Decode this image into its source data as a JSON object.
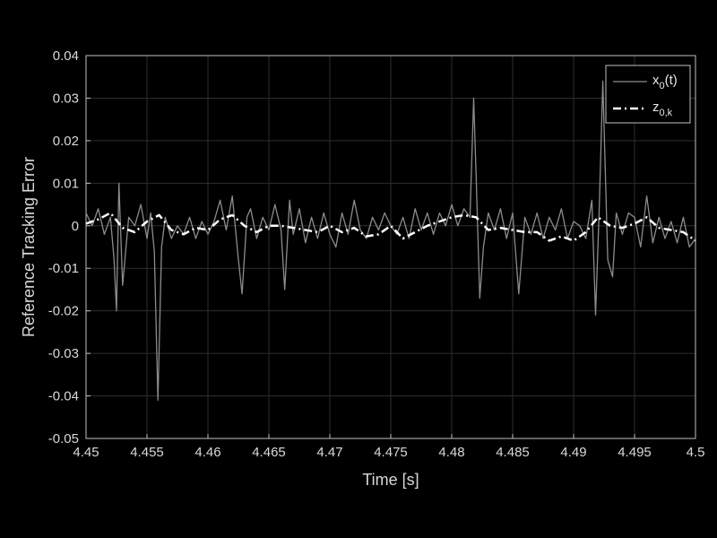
{
  "chart_data": {
    "type": "line",
    "title": "",
    "xlabel": "Time [s]",
    "ylabel": "Reference Tracking Error",
    "xlim": [
      4.45,
      4.5
    ],
    "ylim": [
      -0.05,
      0.04
    ],
    "grid": true,
    "legend_position": "top-right",
    "xticks": [
      4.45,
      4.455,
      4.46,
      4.465,
      4.47,
      4.475,
      4.48,
      4.485,
      4.49,
      4.495,
      4.5
    ],
    "xtick_labels": [
      "4.45",
      "4.455",
      "4.46",
      "4.465",
      "4.47",
      "4.475",
      "4.48",
      "4.485",
      "4.49",
      "4.495",
      "4.5"
    ],
    "yticks": [
      0.04,
      0.03,
      0.02,
      0.01,
      0,
      -0.01,
      -0.02,
      -0.03,
      -0.04,
      -0.05
    ],
    "ytick_labels": [
      "0.04",
      "0.03",
      "0.02",
      "0.01",
      "0",
      "-0.01",
      "-0.02",
      "-0.03",
      "-0.04",
      "-0.05"
    ],
    "series": [
      {
        "name": "x0(t)",
        "legend_main": "x",
        "legend_sub": "0",
        "legend_tail": "(t)",
        "style": "solid",
        "color": "#8c8c8c",
        "x": [
          4.45,
          4.4505,
          4.451,
          4.4515,
          4.452,
          4.4523,
          4.4525,
          4.4527,
          4.453,
          4.4535,
          4.454,
          4.4545,
          4.455,
          4.4553,
          4.4556,
          4.4559,
          4.4562,
          4.4565,
          4.457,
          4.4575,
          4.458,
          4.4585,
          4.459,
          4.4595,
          4.46,
          4.4605,
          4.461,
          4.4615,
          4.462,
          4.4625,
          4.4628,
          4.4632,
          4.4635,
          4.464,
          4.4645,
          4.465,
          4.4655,
          4.466,
          4.4663,
          4.4667,
          4.467,
          4.4675,
          4.468,
          4.4685,
          4.469,
          4.4695,
          4.47,
          4.4705,
          4.471,
          4.4715,
          4.472,
          4.4725,
          4.473,
          4.4735,
          4.474,
          4.4745,
          4.475,
          4.4755,
          4.476,
          4.4765,
          4.477,
          4.4775,
          4.478,
          4.4785,
          4.479,
          4.4795,
          4.48,
          4.4805,
          4.481,
          4.4815,
          4.4818,
          4.482,
          4.4823,
          4.4826,
          4.483,
          4.4835,
          4.484,
          4.4845,
          4.485,
          4.4855,
          4.486,
          4.4865,
          4.487,
          4.4875,
          4.488,
          4.4885,
          4.489,
          4.4895,
          4.49,
          4.4905,
          4.491,
          4.4915,
          4.4918,
          4.4921,
          4.4924,
          4.4928,
          4.4932,
          4.4935,
          4.494,
          4.4945,
          4.495,
          4.4955,
          4.496,
          4.4965,
          4.497,
          4.4975,
          4.498,
          4.4985,
          4.499,
          4.4995,
          4.5
        ],
        "y": [
          0.003,
          0.0,
          0.004,
          -0.002,
          0.002,
          -0.008,
          -0.02,
          0.01,
          -0.014,
          0.002,
          0.0,
          0.005,
          -0.003,
          0.003,
          -0.006,
          -0.041,
          -0.005,
          0.002,
          -0.003,
          0.0,
          -0.002,
          0.002,
          -0.003,
          0.001,
          -0.002,
          0.001,
          0.006,
          -0.001,
          0.007,
          -0.008,
          -0.016,
          0.002,
          0.004,
          -0.003,
          0.002,
          -0.001,
          0.005,
          -0.001,
          -0.015,
          0.006,
          -0.002,
          0.004,
          -0.004,
          0.002,
          -0.003,
          0.003,
          -0.002,
          -0.005,
          0.003,
          -0.002,
          0.006,
          -0.001,
          -0.003,
          0.002,
          -0.001,
          0.003,
          0.0,
          -0.002,
          0.002,
          -0.003,
          0.004,
          -0.001,
          0.003,
          -0.002,
          0.003,
          0.0,
          0.005,
          0.0,
          0.004,
          0.002,
          0.03,
          0.012,
          -0.017,
          -0.005,
          0.003,
          -0.001,
          0.004,
          -0.003,
          0.003,
          -0.016,
          0.002,
          -0.002,
          0.003,
          -0.003,
          0.002,
          -0.001,
          0.004,
          -0.003,
          0.001,
          0.0,
          -0.003,
          0.006,
          -0.021,
          0.004,
          0.034,
          -0.008,
          -0.012,
          0.003,
          -0.002,
          0.003,
          0.002,
          -0.005,
          0.007,
          -0.004,
          0.002,
          -0.003,
          0.001,
          -0.004,
          0.002,
          -0.005,
          -0.003
        ]
      },
      {
        "name": "z0,k",
        "legend_main": "z",
        "legend_sub": "0,k",
        "legend_tail": "",
        "style": "dash-dot",
        "color": "#ffffff",
        "x": [
          4.45,
          4.451,
          4.452,
          4.453,
          4.454,
          4.455,
          4.456,
          4.457,
          4.458,
          4.459,
          4.46,
          4.461,
          4.462,
          4.463,
          4.464,
          4.465,
          4.466,
          4.467,
          4.468,
          4.469,
          4.47,
          4.471,
          4.472,
          4.473,
          4.474,
          4.475,
          4.476,
          4.477,
          4.478,
          4.479,
          4.48,
          4.481,
          4.482,
          4.483,
          4.484,
          4.485,
          4.486,
          4.487,
          4.488,
          4.489,
          4.49,
          4.491,
          4.492,
          4.493,
          4.494,
          4.495,
          4.496,
          4.497,
          4.498,
          4.499,
          4.5
        ],
        "y": [
          0.0005,
          0.0015,
          0.003,
          -0.0005,
          -0.0015,
          0.001,
          0.0025,
          -0.001,
          -0.002,
          -0.0005,
          -0.001,
          0.0015,
          0.0025,
          0.0,
          -0.0015,
          0.0,
          0.0,
          -0.0005,
          -0.001,
          -0.0015,
          0.0,
          -0.0015,
          -0.0005,
          -0.0025,
          -0.002,
          0.0,
          -0.003,
          -0.0015,
          0.0,
          0.001,
          0.002,
          0.0025,
          0.002,
          -0.001,
          -0.0005,
          -0.001,
          -0.0015,
          -0.0015,
          -0.0035,
          -0.0025,
          -0.0035,
          -0.0015,
          0.002,
          0.0,
          -0.0005,
          0.0005,
          0.002,
          -0.0005,
          -0.001,
          -0.0015,
          -0.0035
        ]
      }
    ]
  }
}
